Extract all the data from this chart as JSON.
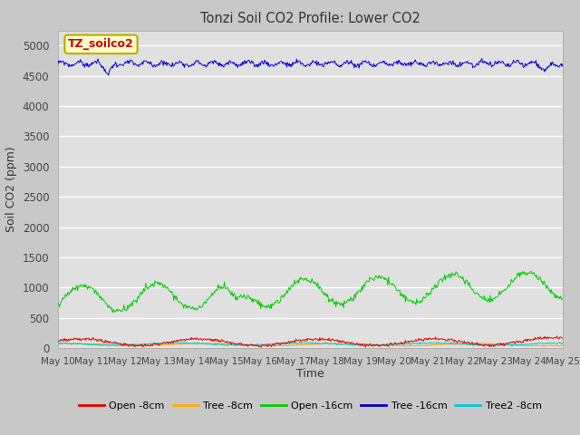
{
  "title": "Tonzi Soil CO2 Profile: Lower CO2",
  "xlabel": "Time",
  "ylabel": "Soil CO2 (ppm)",
  "watermark_text": "TZ_soilco2",
  "ylim": [
    0,
    5250
  ],
  "yticks": [
    0,
    500,
    1000,
    1500,
    2000,
    2500,
    3000,
    3500,
    4000,
    4500,
    5000
  ],
  "fig_bg_color": "#c8c8c8",
  "plot_bg_color": "#e0e0e0",
  "series": {
    "open_8cm": {
      "color": "#dd0000",
      "label": "Open -8cm"
    },
    "tree_8cm": {
      "color": "#ffaa00",
      "label": "Tree -8cm"
    },
    "open_16cm": {
      "color": "#00cc00",
      "label": "Open -16cm"
    },
    "tree_16cm": {
      "color": "#0000cc",
      "label": "Tree -16cm"
    },
    "tree2_8cm": {
      "color": "#00cccc",
      "label": "Tree2 -8cm"
    }
  },
  "x_tick_labels": [
    "May 10",
    "May 11",
    "May 12",
    "May 13",
    "May 14",
    "May 15",
    "May 16",
    "May 17",
    "May 18",
    "May 19",
    "May 20",
    "May 21",
    "May 22",
    "May 23",
    "May 24",
    "May 25"
  ],
  "n_points": 720
}
